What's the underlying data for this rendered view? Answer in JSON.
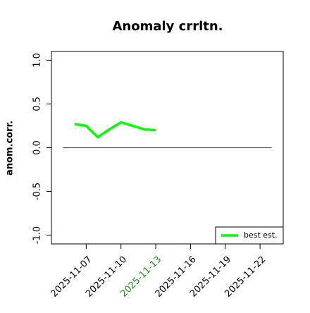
{
  "chart_data": {
    "type": "line",
    "title": "Anomaly crrltn.",
    "ylabel": "anom.corr.",
    "x": [
      "2025-11-06",
      "2025-11-07",
      "2025-11-08",
      "2025-11-09",
      "2025-11-10",
      "2025-11-11",
      "2025-11-12",
      "2025-11-13"
    ],
    "series": [
      {
        "name": "best est.",
        "color": "#00ff00",
        "values": [
          0.27,
          0.25,
          0.12,
          0.21,
          0.29,
          0.25,
          0.21,
          0.2
        ]
      }
    ],
    "reference_line": {
      "value": 0,
      "x": [
        "2025-11-05",
        "2025-11-23"
      ],
      "color": "#555555"
    },
    "xlim": [
      "2025-11-04",
      "2025-11-24"
    ],
    "xticks": [
      "2025-11-07",
      "2025-11-10",
      "2025-11-13",
      "2025-11-16",
      "2025-11-19",
      "2025-11-22"
    ],
    "highlight_xtick": "2025-11-13",
    "highlight_color": "#228b22",
    "ylim": [
      -1.1,
      1.1
    ],
    "yticks": [
      {
        "value": -1,
        "label": "-1.0"
      },
      {
        "value": -0.5,
        "label": "-0.5"
      },
      {
        "value": 0,
        "label": "0.0"
      },
      {
        "value": 0.5,
        "label": "0.5"
      },
      {
        "value": 1,
        "label": "1.0"
      }
    ],
    "legend": "lower right"
  }
}
